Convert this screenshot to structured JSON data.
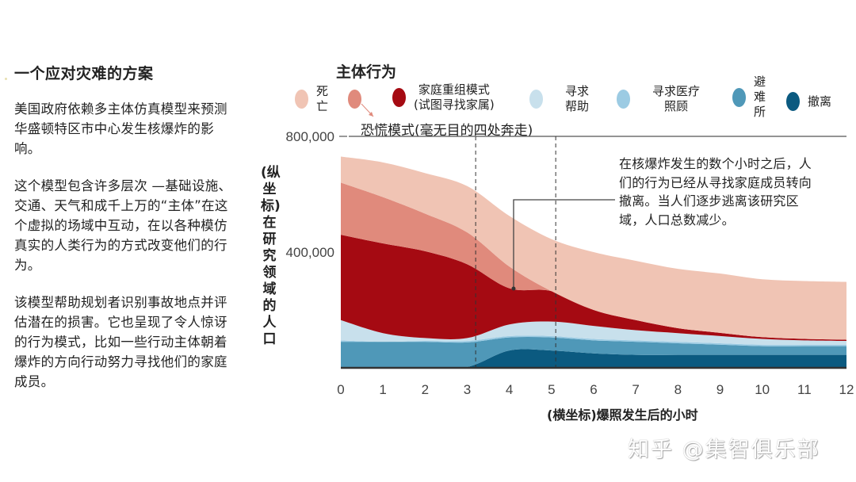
{
  "left_panel": {
    "title": "一个应对灾难的方案",
    "paragraphs": [
      "美国政府依赖多主体仿真模型来预测华盛顿特区市中心发生核爆炸的影响。",
      "这个模型包含许多层次 —基础设施、交通、天气和成千上万的“主体”在这个虚拟的场域中互动，在以各种模仿真实的人类行为的方式改变他们的行为。",
      "该模型帮助规划者识别事故地点并评估潜在的损害。它也呈现了令人惊讶的行为模式，比如一些行动主体朝着爆炸的方向行动努力寻找他们的家庭成员。"
    ]
  },
  "watermark": "知乎 @集智俱乐部",
  "chart_data": {
    "type": "area",
    "stacked": true,
    "title": "主体行为",
    "xlabel": "(横坐标)爆照发生后的小时",
    "ylabel": "(纵坐标)在研究领域的人口",
    "x": [
      0,
      1,
      2,
      3,
      4,
      5,
      6,
      7,
      8,
      9,
      10,
      11,
      12
    ],
    "xticks": [
      "0",
      "1",
      "2",
      "3",
      "4",
      "5",
      "6",
      "7",
      "8",
      "9",
      "10",
      "11",
      "12"
    ],
    "xlim": [
      0,
      12
    ],
    "ylim": [
      0,
      800000
    ],
    "yticks": [
      {
        "value": 400000,
        "label": "400,000"
      },
      {
        "value": 800000,
        "label": "800,000"
      }
    ],
    "legend": [
      {
        "key": "death",
        "label_lines": [
          "死",
          "亡"
        ],
        "color": "#f0c4b4"
      },
      {
        "key": "panic",
        "label_lines": [
          "恐慌模式(毫无目的四处奔走)"
        ],
        "color": "#e08a7c"
      },
      {
        "key": "family",
        "label_lines": [
          "家庭重组模式",
          "(试图寻找家属)"
        ],
        "color": "#a50a12"
      },
      {
        "key": "help",
        "label_lines": [
          "寻求",
          "帮助"
        ],
        "color": "#c8e0ec"
      },
      {
        "key": "medical",
        "label_lines": [
          "寻求医疗",
          "照顾"
        ],
        "color": "#9ccbe3"
      },
      {
        "key": "shelter",
        "label_lines": [
          "避",
          "难",
          "所"
        ],
        "color": "#4f98b8"
      },
      {
        "key": "evacuation",
        "label_lines": [
          "撤离"
        ],
        "color": "#0b5a80"
      }
    ],
    "series": [
      {
        "name": "撤离",
        "key": "evacuation",
        "values": [
          0,
          0,
          0,
          3000,
          60000,
          60000,
          50000,
          45000,
          45000,
          45000,
          45000,
          45000,
          45000
        ]
      },
      {
        "name": "避难所",
        "key": "shelter",
        "values": [
          90000,
          90000,
          90000,
          85000,
          45000,
          45000,
          45000,
          45000,
          40000,
          35000,
          30000,
          30000,
          30000
        ]
      },
      {
        "name": "寻求医疗照顾",
        "key": "medical",
        "values": [
          5000,
          0,
          3000,
          5000,
          5000,
          5000,
          5000,
          5000,
          5000,
          5000,
          5000,
          5000,
          5000
        ]
      },
      {
        "name": "寻求帮助",
        "key": "help",
        "values": [
          70000,
          30000,
          10000,
          10000,
          40000,
          50000,
          45000,
          35000,
          30000,
          25000,
          20000,
          15000,
          13000
        ]
      },
      {
        "name": "家庭重组模式",
        "key": "family",
        "values": [
          295000,
          310000,
          300000,
          255000,
          125000,
          105000,
          55000,
          35000,
          17000,
          11000,
          6000,
          5000,
          4000
        ]
      },
      {
        "name": "恐慌模式",
        "key": "panic",
        "values": [
          180000,
          160000,
          130000,
          110000,
          75000,
          0,
          0,
          0,
          0,
          0,
          0,
          0,
          0
        ]
      },
      {
        "name": "死亡",
        "key": "death",
        "values": [
          90000,
          120000,
          140000,
          160000,
          175000,
          180000,
          200000,
          205000,
          205000,
          205000,
          200000,
          200000,
          200000
        ]
      }
    ],
    "dashed_markers_x": [
      3.2,
      5.1
    ],
    "annotation": {
      "x": 4.1,
      "text": "在核爆炸发生的数个小时之后，人们的行为已经从寻找家庭成员转向撤离。当人们逐步逃离该研究区域，人口总数减少。"
    },
    "grid": false
  }
}
